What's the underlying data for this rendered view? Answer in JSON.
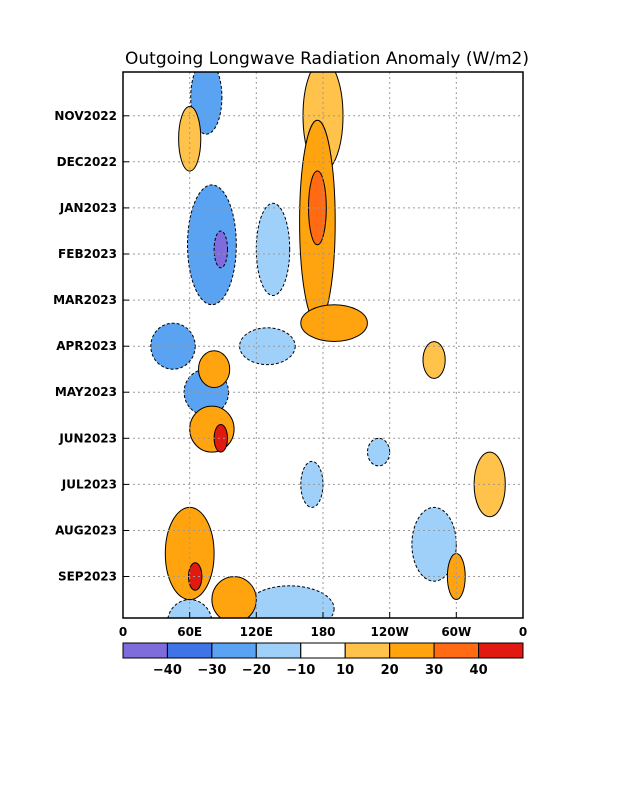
{
  "chart_data": {
    "type": "heatmap",
    "title": "Outgoing Longwave Radiation Anomaly (W/m2)",
    "xlabel": "",
    "ylabel": "",
    "x_ticks": [
      {
        "lon": 0,
        "label": "0"
      },
      {
        "lon": 60,
        "label": "60E"
      },
      {
        "lon": 120,
        "label": "120E"
      },
      {
        "lon": 180,
        "label": "180"
      },
      {
        "lon": 240,
        "label": "120W"
      },
      {
        "lon": 300,
        "label": "60W"
      },
      {
        "lon": 360,
        "label": "0"
      }
    ],
    "xlim": [
      0,
      360
    ],
    "y_ticks": [
      {
        "month": 1,
        "label": "NOV2022"
      },
      {
        "month": 2,
        "label": "DEC2022"
      },
      {
        "month": 3,
        "label": "JAN2023"
      },
      {
        "month": 4,
        "label": "FEB2023"
      },
      {
        "month": 5,
        "label": "MAR2023"
      },
      {
        "month": 6,
        "label": "APR2023"
      },
      {
        "month": 7,
        "label": "MAY2023"
      },
      {
        "month": 8,
        "label": "JUN2023"
      },
      {
        "month": 9,
        "label": "JUL2023"
      },
      {
        "month": 10,
        "label": "AUG2023"
      },
      {
        "month": 11,
        "label": "SEP2023"
      }
    ],
    "ylim": [
      0.05,
      11.9
    ],
    "grid": true,
    "colorbar": {
      "position": "bottom",
      "bins": [
        {
          "color": "#7e6cdc"
        },
        {
          "color": "#3f74e8"
        },
        {
          "color": "#5aa2f2"
        },
        {
          "color": "#9fd0fa"
        },
        {
          "color": "#ffffff"
        },
        {
          "color": "#ffc24a"
        },
        {
          "color": "#ffa30f"
        },
        {
          "color": "#ff6a12"
        },
        {
          "color": "#e01a10"
        }
      ],
      "labels": [
        "−40",
        "−30",
        "−20",
        "−10",
        "10",
        "20",
        "30",
        "40"
      ]
    },
    "anomaly_regions": [
      {
        "lon": 75,
        "month": 0.6,
        "dlon": 14,
        "dmonth": 0.8,
        "value": -22
      },
      {
        "lon": 80,
        "month": 3.8,
        "dlon": 22,
        "dmonth": 1.3,
        "value": -28
      },
      {
        "lon": 88,
        "month": 3.9,
        "dlon": 6,
        "dmonth": 0.4,
        "value": -42
      },
      {
        "lon": 135,
        "month": 3.9,
        "dlon": 15,
        "dmonth": 1.0,
        "value": -18
      },
      {
        "lon": 45,
        "month": 6.0,
        "dlon": 20,
        "dmonth": 0.5,
        "value": -25
      },
      {
        "lon": 75,
        "month": 7.0,
        "dlon": 20,
        "dmonth": 0.5,
        "value": -22
      },
      {
        "lon": 130,
        "month": 6.0,
        "dlon": 25,
        "dmonth": 0.4,
        "value": -14
      },
      {
        "lon": 170,
        "month": 9.0,
        "dlon": 10,
        "dmonth": 0.5,
        "value": -16
      },
      {
        "lon": 230,
        "month": 8.3,
        "dlon": 10,
        "dmonth": 0.3,
        "value": -14
      },
      {
        "lon": 280,
        "month": 10.3,
        "dlon": 20,
        "dmonth": 0.8,
        "value": -14
      },
      {
        "lon": 60,
        "month": 12.0,
        "dlon": 20,
        "dmonth": 0.5,
        "value": -18
      },
      {
        "lon": 150,
        "month": 11.7,
        "dlon": 40,
        "dmonth": 0.5,
        "value": -12
      },
      {
        "lon": 180,
        "month": 1.0,
        "dlon": 18,
        "dmonth": 1.2,
        "value": 18
      },
      {
        "lon": 175,
        "month": 3.3,
        "dlon": 16,
        "dmonth": 2.2,
        "value": 28
      },
      {
        "lon": 175,
        "month": 3.0,
        "dlon": 8,
        "dmonth": 0.8,
        "value": 38
      },
      {
        "lon": 190,
        "month": 5.5,
        "dlon": 30,
        "dmonth": 0.4,
        "value": 28
      },
      {
        "lon": 60,
        "month": 1.5,
        "dlon": 10,
        "dmonth": 0.7,
        "value": 14
      },
      {
        "lon": 82,
        "month": 6.5,
        "dlon": 14,
        "dmonth": 0.4,
        "value": 28
      },
      {
        "lon": 80,
        "month": 7.8,
        "dlon": 20,
        "dmonth": 0.5,
        "value": 22
      },
      {
        "lon": 88,
        "month": 8.0,
        "dlon": 6,
        "dmonth": 0.3,
        "value": 46
      },
      {
        "lon": 60,
        "month": 10.5,
        "dlon": 22,
        "dmonth": 1.0,
        "value": 20
      },
      {
        "lon": 65,
        "month": 11.0,
        "dlon": 6,
        "dmonth": 0.3,
        "value": 42
      },
      {
        "lon": 100,
        "month": 11.5,
        "dlon": 20,
        "dmonth": 0.5,
        "value": 22
      },
      {
        "lon": 300,
        "month": 11.0,
        "dlon": 8,
        "dmonth": 0.5,
        "value": 28
      },
      {
        "lon": 280,
        "month": 6.3,
        "dlon": 10,
        "dmonth": 0.4,
        "value": 14
      },
      {
        "lon": 330,
        "month": 9.0,
        "dlon": 14,
        "dmonth": 0.7,
        "value": 14
      }
    ]
  }
}
